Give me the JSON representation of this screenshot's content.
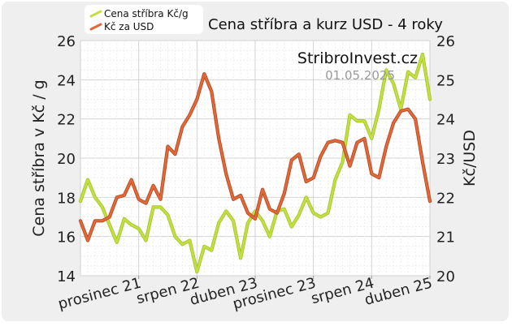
{
  "chart_data": {
    "type": "line",
    "title": "Cena stříbra a kurz USD - 4 roky",
    "watermark": "StribroInvest.cz",
    "date": "01.05.2025",
    "ylabel_left": "Cena stříbra v Kč / g",
    "ylabel_right": "Kč/USD",
    "ylim_left": [
      14,
      26
    ],
    "ylim_right": [
      20,
      26
    ],
    "yticks_left": [
      "14",
      "16",
      "18",
      "20",
      "22",
      "24",
      "26"
    ],
    "yticks_right": [
      "20",
      "21",
      "22",
      "23",
      "24",
      "25",
      "26"
    ],
    "xtick_labels": [
      "prosinec 21",
      "srpen 22",
      "duben 23",
      "prosinec 23",
      "srpen 24",
      "duben 25"
    ],
    "xtick_index": [
      8,
      16,
      24,
      32,
      40,
      48
    ],
    "grid": true,
    "legend_placement": "top-left",
    "series": [
      {
        "name": "Cena stříbra Kč/g",
        "axis": "left",
        "color": "#c3e043",
        "values": [
          17.8,
          18.9,
          18.0,
          17.5,
          16.6,
          15.7,
          16.9,
          16.6,
          16.4,
          15.8,
          17.5,
          17.5,
          17.1,
          16.0,
          15.6,
          15.8,
          14.2,
          15.5,
          15.3,
          16.7,
          17.3,
          16.8,
          14.9,
          16.7,
          17.3,
          16.8,
          16.0,
          17.3,
          17.4,
          16.5,
          17.1,
          18.0,
          17.2,
          17.0,
          17.2,
          18.9,
          19.8,
          22.2,
          21.9,
          21.9,
          21.0,
          22.5,
          24.5,
          23.8,
          22.5,
          24.4,
          24.1,
          25.3,
          23.0
        ]
      },
      {
        "name": "Kč za USD",
        "axis": "right",
        "color": "#e06a3a",
        "values": [
          21.4,
          20.9,
          21.4,
          21.4,
          21.5,
          22.0,
          22.05,
          22.45,
          21.95,
          21.85,
          22.3,
          21.95,
          23.3,
          23.1,
          23.8,
          24.1,
          24.5,
          25.15,
          24.7,
          23.5,
          22.6,
          21.95,
          22.05,
          21.6,
          21.45,
          22.2,
          21.7,
          21.6,
          22.1,
          22.95,
          23.1,
          22.4,
          22.5,
          23.05,
          23.4,
          23.45,
          23.4,
          22.8,
          23.4,
          23.5,
          22.6,
          22.5,
          23.3,
          23.9,
          24.2,
          24.25,
          24.0,
          22.9,
          21.9
        ]
      }
    ]
  }
}
